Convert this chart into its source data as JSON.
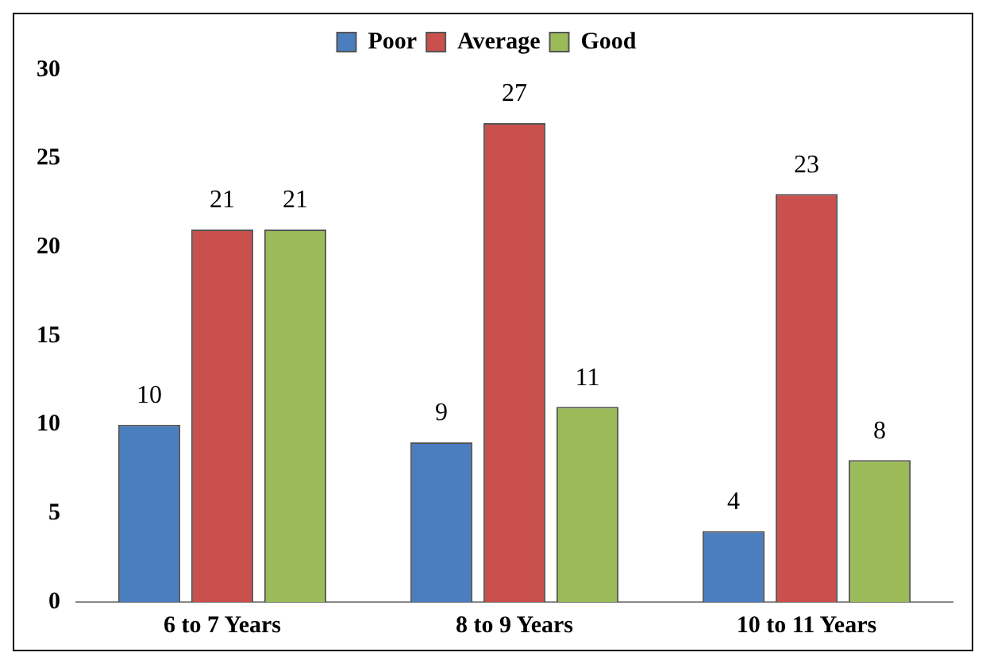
{
  "chart_data": {
    "type": "bar",
    "categories": [
      "6 to 7 Years",
      "8 to 9 Years",
      "10 to 11 Years"
    ],
    "series": [
      {
        "name": "Poor",
        "color": "#4a7ebf",
        "values": [
          10,
          9,
          4
        ]
      },
      {
        "name": "Average",
        "color": "#c9504d",
        "values": [
          21,
          27,
          23
        ]
      },
      {
        "name": "Good",
        "color": "#9bbb59",
        "values": [
          21,
          11,
          8
        ]
      }
    ],
    "ylim": [
      0,
      30
    ],
    "yticks": [
      0,
      5,
      10,
      15,
      20,
      25,
      30
    ],
    "grid": false,
    "legend": "top",
    "data_labels": true
  }
}
